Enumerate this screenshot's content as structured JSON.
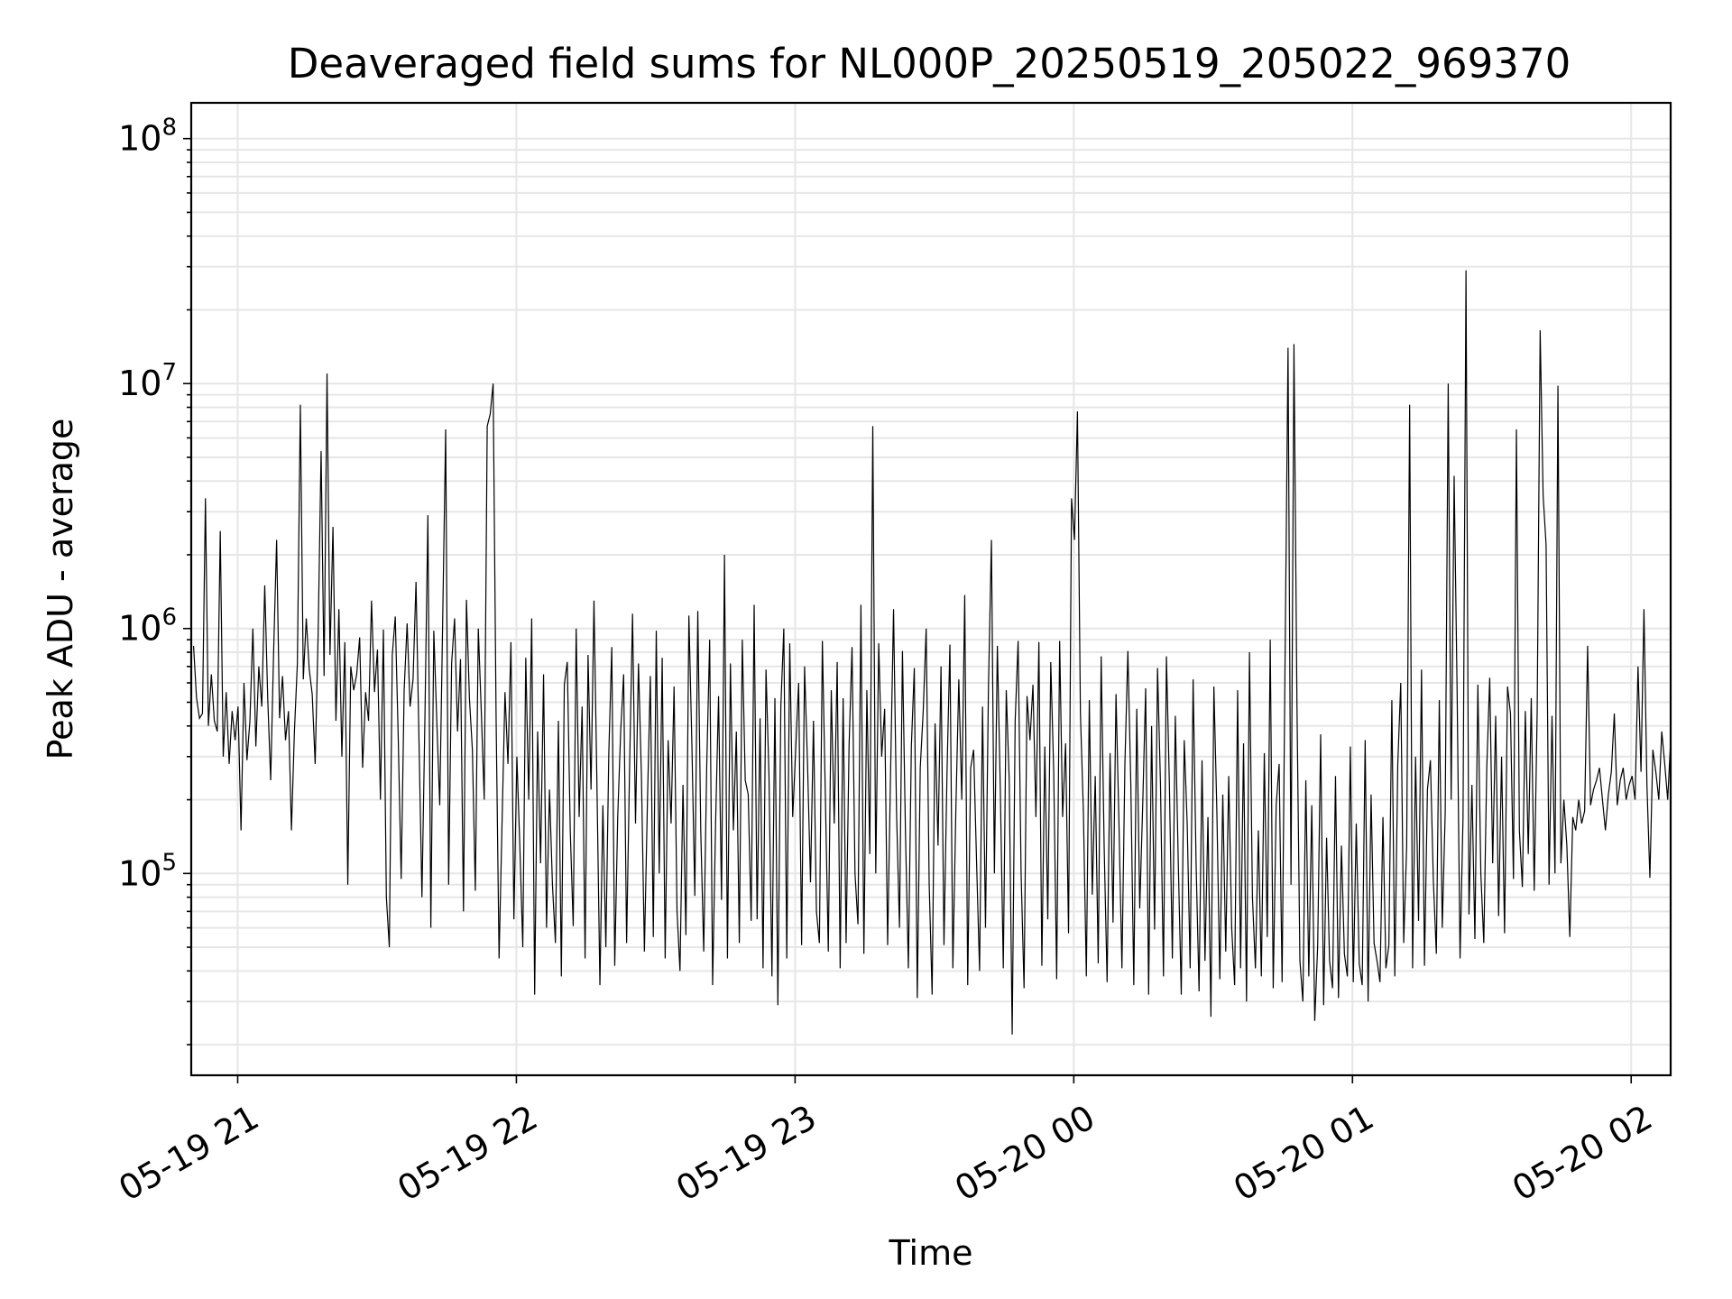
{
  "chart_data": {
    "type": "line",
    "title": "Deaveraged field sums for NL000P_20250519_205022_969370",
    "xlabel": "Time",
    "ylabel": "Peak ADU - average",
    "yscale": "log",
    "ylim": [
      15000,
      140000000
    ],
    "xlim": [
      "2025-05-19T20:50:00",
      "2025-05-20T02:08:30"
    ],
    "grid": true,
    "line_color": "#000000",
    "x_tick_labels": [
      "05-19 21",
      "05-19 22",
      "05-19 23",
      "05-20 00",
      "05-20 01",
      "05-20 02"
    ],
    "x_ticks": [
      "2025-05-19T21:00:00",
      "2025-05-19T22:00:00",
      "2025-05-19T23:00:00",
      "2025-05-20T00:00:00",
      "2025-05-20T01:00:00",
      "2025-05-20T02:00:00"
    ],
    "y_ticks": [
      {
        "value": 100000,
        "base": "10",
        "exp": "5"
      },
      {
        "value": 1000000,
        "base": "10",
        "exp": "6"
      },
      {
        "value": 10000000,
        "base": "10",
        "exp": "7"
      },
      {
        "value": 100000000,
        "base": "10",
        "exp": "8"
      }
    ],
    "series": [
      {
        "x_start": "2025-05-19T20:50:30",
        "x_end": "2025-05-20T02:08:30",
        "values": [
          850000,
          520000,
          430000,
          450000,
          3400000,
          400000,
          650000,
          420000,
          380000,
          2500000,
          300000,
          550000,
          280000,
          460000,
          350000,
          480000,
          150000,
          600000,
          290000,
          420000,
          1000000,
          330000,
          700000,
          480000,
          1500000,
          520000,
          240000,
          810000,
          2300000,
          430000,
          640000,
          350000,
          460000,
          150000,
          380000,
          720000,
          8200000,
          620000,
          1100000,
          680000,
          540000,
          280000,
          950000,
          5300000,
          640000,
          11000000,
          780000,
          2600000,
          420000,
          1200000,
          300000,
          880000,
          90000,
          700000,
          560000,
          650000,
          920000,
          270000,
          550000,
          420000,
          1300000,
          550000,
          820000,
          200000,
          990000,
          80000,
          50000,
          780000,
          1120000,
          360000,
          95000,
          560000,
          1050000,
          480000,
          620000,
          1550000,
          350000,
          80000,
          430000,
          2900000,
          60000,
          980000,
          420000,
          190000,
          1100000,
          6500000,
          90000,
          720000,
          1100000,
          380000,
          750000,
          70000,
          1310000,
          520000,
          320000,
          85000,
          1000000,
          460000,
          200000,
          6700000,
          7500000,
          10000000,
          430000,
          45000,
          160000,
          550000,
          280000,
          880000,
          65000,
          300000,
          130000,
          50000,
          760000,
          200000,
          1100000,
          32000,
          380000,
          110000,
          650000,
          60000,
          220000,
          90000,
          52000,
          420000,
          38000,
          590000,
          730000,
          150000,
          61000,
          1000000,
          170000,
          480000,
          45000,
          780000,
          220000,
          1300000,
          230000,
          35000,
          190000,
          50000,
          310000,
          840000,
          42000,
          170000,
          380000,
          650000,
          52000,
          270000,
          1150000,
          160000,
          720000,
          250000,
          48000,
          190000,
          640000,
          55000,
          980000,
          100000,
          760000,
          45000,
          350000,
          160000,
          580000,
          70000,
          40000,
          230000,
          56000,
          1130000,
          340000,
          81000,
          1180000,
          150000,
          48000,
          270000,
          900000,
          35000,
          160000,
          530000,
          78000,
          2000000,
          45000,
          720000,
          150000,
          380000,
          52000,
          900000,
          240000,
          210000,
          64000,
          1250000,
          65000,
          430000,
          41000,
          680000,
          250000,
          38000,
          520000,
          29000,
          480000,
          1000000,
          45000,
          870000,
          170000,
          320000,
          600000,
          51000,
          700000,
          280000,
          92000,
          420000,
          70000,
          52000,
          890000,
          210000,
          48000,
          560000,
          160000,
          730000,
          41000,
          520000,
          52000,
          330000,
          840000,
          100000,
          62000,
          1250000,
          47000,
          560000,
          120000,
          6700000,
          100000,
          870000,
          300000,
          470000,
          51000,
          260000,
          1200000,
          180000,
          60000,
          810000,
          150000,
          41000,
          330000,
          690000,
          31000,
          270000,
          460000,
          1000000,
          92000,
          32000,
          410000,
          130000,
          700000,
          51000,
          250000,
          860000,
          41000,
          180000,
          620000,
          200000,
          1370000,
          35000,
          270000,
          320000,
          110000,
          40000,
          480000,
          60000,
          580000,
          2300000,
          100000,
          850000,
          220000,
          41000,
          560000,
          240000,
          22000,
          420000,
          890000,
          100000,
          34000,
          530000,
          350000,
          590000,
          170000,
          880000,
          42000,
          330000,
          65000,
          730000,
          260000,
          37000,
          890000,
          170000,
          340000,
          57000,
          3400000,
          2300000,
          7700000,
          450000,
          180000,
          38000,
          510000,
          82000,
          250000,
          43000,
          770000,
          130000,
          36000,
          310000,
          63000,
          540000,
          160000,
          41000,
          280000,
          810000,
          230000,
          35000,
          470000,
          72000,
          190000,
          570000,
          32000,
          400000,
          59000,
          690000,
          230000,
          38000,
          770000,
          230000,
          45000,
          440000,
          110000,
          32000,
          350000,
          160000,
          41000,
          620000,
          110000,
          33000,
          290000,
          44000,
          170000,
          26000,
          580000,
          180000,
          37000,
          210000,
          48000,
          250000,
          60000,
          35000,
          560000,
          41000,
          340000,
          30000,
          800000,
          80000,
          41000,
          150000,
          38000,
          310000,
          55000,
          900000,
          34000,
          190000,
          280000,
          36000,
          750000,
          14000000,
          90000,
          14500000,
          500000,
          44000,
          30000,
          240000,
          38000,
          190000,
          25000,
          51000,
          370000,
          29000,
          140000,
          44000,
          34000,
          250000,
          31000,
          130000,
          47000,
          38000,
          330000,
          36000,
          160000,
          43000,
          35000,
          350000,
          30000,
          210000,
          52000,
          44000,
          36000,
          170000,
          41000,
          51000,
          510000,
          38000,
          280000,
          600000,
          52000,
          130000,
          8200000,
          41000,
          300000,
          64000,
          680000,
          42000,
          220000,
          290000,
          93000,
          47000,
          510000,
          60000,
          180000,
          10000000,
          200000,
          4200000,
          560000,
          45000,
          170000,
          29000000,
          68000,
          230000,
          54000,
          590000,
          100000,
          52000,
          270000,
          630000,
          110000,
          440000,
          67000,
          300000,
          57000,
          580000,
          450000,
          95000,
          6500000,
          150000,
          88000,
          460000,
          120000,
          520000,
          85000,
          460000,
          16500000,
          3500000,
          2200000,
          90000,
          440000,
          100000,
          9800000,
          110000,
          200000,
          130000,
          55000,
          170000,
          150000,
          200000,
          160000,
          180000,
          850000,
          190000,
          220000,
          240000,
          270000,
          200000,
          150000,
          210000,
          260000,
          450000,
          190000,
          240000,
          270000,
          200000,
          230000,
          250000,
          200000,
          700000,
          260000,
          1200000,
          230000,
          96000,
          320000,
          260000,
          200000,
          380000,
          280000,
          200000,
          350000
        ]
      }
    ]
  }
}
